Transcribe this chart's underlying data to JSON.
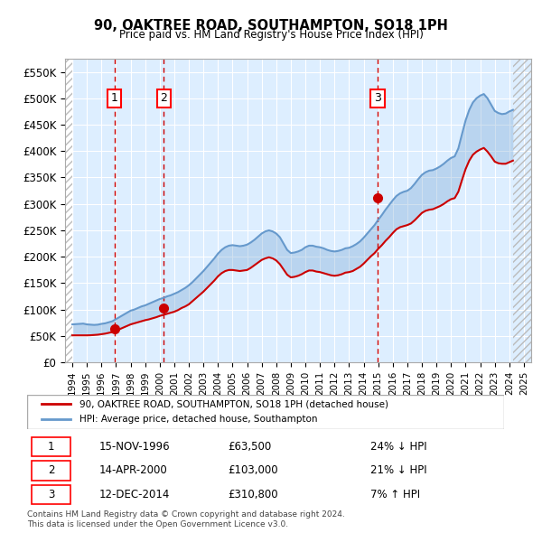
{
  "title": "90, OAKTREE ROAD, SOUTHAMPTON, SO18 1PH",
  "subtitle": "Price paid vs. HM Land Registry's House Price Index (HPI)",
  "xlim": [
    1993.5,
    2025.5
  ],
  "ylim": [
    0,
    575000
  ],
  "yticks": [
    0,
    50000,
    100000,
    150000,
    200000,
    250000,
    300000,
    350000,
    400000,
    450000,
    500000,
    550000
  ],
  "ytick_labels": [
    "£0",
    "£50K",
    "£100K",
    "£150K",
    "£200K",
    "£250K",
    "£300K",
    "£350K",
    "£400K",
    "£450K",
    "£500K",
    "£550K"
  ],
  "sale_dates": [
    1996.88,
    2000.29,
    2014.95
  ],
  "sale_prices": [
    63500,
    103000,
    310800
  ],
  "hpi_color": "#6699cc",
  "sale_color": "#cc0000",
  "vline_color": "#cc0000",
  "background_color": "#ffffff",
  "plot_bg_color": "#ddeeff",
  "hatch_color": "#cccccc",
  "legend_label_sale": "90, OAKTREE ROAD, SOUTHAMPTON, SO18 1PH (detached house)",
  "legend_label_hpi": "HPI: Average price, detached house, Southampton",
  "table_data": [
    [
      "1",
      "15-NOV-1996",
      "£63,500",
      "24% ↓ HPI"
    ],
    [
      "2",
      "14-APR-2000",
      "£103,000",
      "21% ↓ HPI"
    ],
    [
      "3",
      "12-DEC-2014",
      "£310,800",
      "7% ↑ HPI"
    ]
  ],
  "footer": "Contains HM Land Registry data © Crown copyright and database right 2024.\nThis data is licensed under the Open Government Licence v3.0.",
  "hpi_data_x": [
    1994.0,
    1994.25,
    1994.5,
    1994.75,
    1995.0,
    1995.25,
    1995.5,
    1995.75,
    1996.0,
    1996.25,
    1996.5,
    1996.75,
    1997.0,
    1997.25,
    1997.5,
    1997.75,
    1998.0,
    1998.25,
    1998.5,
    1998.75,
    1999.0,
    1999.25,
    1999.5,
    1999.75,
    2000.0,
    2000.25,
    2000.5,
    2000.75,
    2001.0,
    2001.25,
    2001.5,
    2001.75,
    2002.0,
    2002.25,
    2002.5,
    2002.75,
    2003.0,
    2003.25,
    2003.5,
    2003.75,
    2004.0,
    2004.25,
    2004.5,
    2004.75,
    2005.0,
    2005.25,
    2005.5,
    2005.75,
    2006.0,
    2006.25,
    2006.5,
    2006.75,
    2007.0,
    2007.25,
    2007.5,
    2007.75,
    2008.0,
    2008.25,
    2008.5,
    2008.75,
    2009.0,
    2009.25,
    2009.5,
    2009.75,
    2010.0,
    2010.25,
    2010.5,
    2010.75,
    2011.0,
    2011.25,
    2011.5,
    2011.75,
    2012.0,
    2012.25,
    2012.5,
    2012.75,
    2013.0,
    2013.25,
    2013.5,
    2013.75,
    2014.0,
    2014.25,
    2014.5,
    2014.75,
    2015.0,
    2015.25,
    2015.5,
    2015.75,
    2016.0,
    2016.25,
    2016.5,
    2016.75,
    2017.0,
    2017.25,
    2017.5,
    2017.75,
    2018.0,
    2018.25,
    2018.5,
    2018.75,
    2019.0,
    2019.25,
    2019.5,
    2019.75,
    2020.0,
    2020.25,
    2020.5,
    2020.75,
    2021.0,
    2021.25,
    2021.5,
    2021.75,
    2022.0,
    2022.25,
    2022.5,
    2022.75,
    2023.0,
    2023.25,
    2023.5,
    2023.75,
    2024.0,
    2024.25
  ],
  "hpi_data_y": [
    72000,
    72500,
    73000,
    73500,
    72000,
    71500,
    71000,
    71500,
    73000,
    74000,
    76000,
    78000,
    82000,
    86000,
    90000,
    94000,
    98000,
    100000,
    103000,
    106000,
    108000,
    111000,
    114000,
    117000,
    120000,
    122000,
    125000,
    127000,
    130000,
    133000,
    137000,
    141000,
    146000,
    152000,
    159000,
    166000,
    173000,
    181000,
    189000,
    197000,
    206000,
    213000,
    218000,
    221000,
    222000,
    221000,
    220000,
    221000,
    223000,
    227000,
    232000,
    238000,
    244000,
    248000,
    250000,
    248000,
    244000,
    237000,
    225000,
    213000,
    207000,
    208000,
    210000,
    213000,
    218000,
    221000,
    221000,
    219000,
    218000,
    216000,
    213000,
    211000,
    210000,
    211000,
    213000,
    216000,
    217000,
    220000,
    224000,
    229000,
    236000,
    244000,
    252000,
    260000,
    270000,
    279000,
    289000,
    298000,
    307000,
    315000,
    320000,
    323000,
    325000,
    330000,
    338000,
    347000,
    355000,
    360000,
    363000,
    364000,
    367000,
    371000,
    376000,
    382000,
    387000,
    390000,
    405000,
    432000,
    458000,
    478000,
    492000,
    500000,
    505000,
    508000,
    500000,
    488000,
    476000,
    472000,
    470000,
    471000,
    475000,
    478000
  ],
  "sale_hpi_indexed_y": [
    51300,
    51300,
    51300,
    51300,
    51300,
    51500,
    52000,
    52500,
    53500,
    54500,
    56000,
    57500,
    60000,
    63000,
    66000,
    69000,
    72000,
    74000,
    76000,
    78000,
    80000,
    81500,
    83500,
    85500,
    88000,
    90000,
    92000,
    94000,
    96000,
    99000,
    103000,
    106000,
    110000,
    116000,
    122000,
    128000,
    134000,
    141000,
    148000,
    155000,
    163000,
    169000,
    173000,
    175000,
    175000,
    174000,
    173000,
    174000,
    175000,
    179000,
    184000,
    189000,
    194000,
    197000,
    199000,
    197000,
    193000,
    186000,
    176000,
    166000,
    161000,
    162000,
    164000,
    167000,
    171000,
    174000,
    174000,
    172000,
    171000,
    169000,
    167000,
    165000,
    164000,
    165000,
    167000,
    170000,
    171000,
    173000,
    177000,
    181000,
    187000,
    194000,
    201000,
    207000,
    215000,
    222000,
    230000,
    237000,
    245000,
    252000,
    256000,
    258000,
    260000,
    263000,
    269000,
    276000,
    283000,
    287000,
    289000,
    290000,
    293000,
    296000,
    300000,
    305000,
    309000,
    311000,
    323000,
    345000,
    366000,
    382000,
    393000,
    399000,
    403000,
    406000,
    399000,
    390000,
    380000,
    377000,
    376000,
    376000,
    379000,
    382000
  ]
}
